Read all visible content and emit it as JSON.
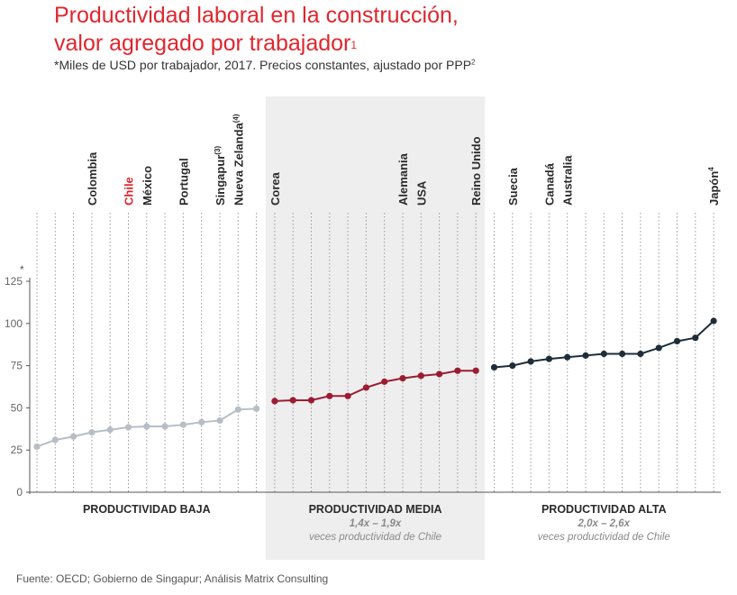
{
  "header": {
    "title_line1": "Productividad laboral en la construcción,",
    "title_line2": "valor agregado por trabajador",
    "title_footnote": "1",
    "subtitle": "*Miles de USD por trabajador, 2017. Precios constantes, ajustado por PPP",
    "subtitle_footnote": "2"
  },
  "footer": {
    "source": "Fuente: OECD; Gobierno de Singapur; Análisis Matrix Consulting"
  },
  "colors": {
    "low": "#b8bec6",
    "mid": "#9b1c32",
    "high": "#1f2d3a",
    "highlight": "#e0262e",
    "band": "#eeeeee",
    "grid": "#9a9a9a"
  },
  "chart_data": {
    "type": "line",
    "y_axis_marker": "*",
    "ylim": [
      0,
      125
    ],
    "yticks": [
      0,
      25,
      50,
      75,
      100,
      125
    ],
    "grid": "vertical dotted lines at each country",
    "series": [
      {
        "name": "Productividad baja",
        "color": "#b8bec6",
        "values": [
          27,
          31,
          33,
          35.5,
          37,
          38.5,
          39,
          39,
          40,
          41.5,
          42.5,
          49,
          49.5
        ]
      },
      {
        "name": "Productividad media",
        "color": "#9b1c32",
        "values": [
          54,
          54.5,
          54.5,
          57,
          57,
          62,
          65.5,
          67.5,
          69,
          70,
          72,
          72
        ]
      },
      {
        "name": "Productividad alta",
        "color": "#1f2d3a",
        "values": [
          74,
          75,
          77.5,
          79,
          80,
          81,
          82,
          82,
          82,
          85.5,
          89.5,
          91.5,
          101.5
        ]
      }
    ],
    "country_labels": [
      {
        "index": 3,
        "text": "Colombia",
        "sup": ""
      },
      {
        "index": 5,
        "text": "Chile",
        "sup": "",
        "highlight": true
      },
      {
        "index": 6,
        "text": "México",
        "sup": ""
      },
      {
        "index": 8,
        "text": "Portugal",
        "sup": ""
      },
      {
        "index": 10,
        "text": "Singapur",
        "sup": "(3)"
      },
      {
        "index": 11,
        "text": "Nueva Zelanda",
        "sup": "(4)"
      },
      {
        "index": 13,
        "text": "Corea",
        "sup": ""
      },
      {
        "index": 20,
        "text": "Alemania",
        "sup": ""
      },
      {
        "index": 21,
        "text": "USA",
        "sup": ""
      },
      {
        "index": 24,
        "text": "Reino Unido",
        "sup": ""
      },
      {
        "index": 26,
        "text": "Suecia",
        "sup": ""
      },
      {
        "index": 28,
        "text": "Canadá",
        "sup": ""
      },
      {
        "index": 29,
        "text": "Australia",
        "sup": ""
      },
      {
        "index": 37,
        "text": "Japón",
        "sup": "4"
      }
    ],
    "groups": [
      {
        "label": "PRODUCTIVIDAD BAJA",
        "range": "",
        "note": "",
        "shaded": false
      },
      {
        "label": "PRODUCTIVIDAD MEDIA",
        "range": "1,4x – 1,9x",
        "note": "veces productividad de Chile",
        "shaded": true
      },
      {
        "label": "PRODUCTIVIDAD ALTA",
        "range": "2,0x – 2,6x",
        "note": "veces productividad de Chile",
        "shaded": false
      }
    ]
  }
}
